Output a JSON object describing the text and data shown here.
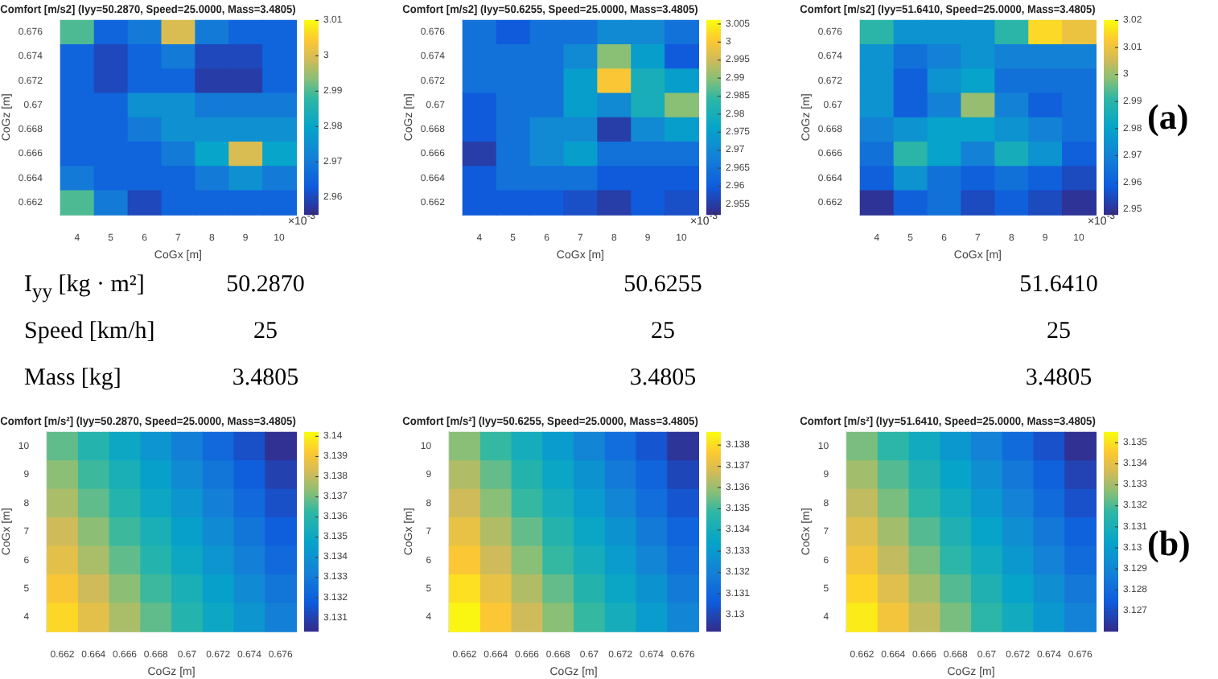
{
  "chart_data": [
    {
      "type": "heatmap",
      "title": "Comfort [m/s2] (Iyy=50.2870, Speed=25.0000, Mass=3.4805)",
      "xlabel": "CoGx [m]",
      "ylabel": "CoGz [m]",
      "annotations": [
        "×10$^{-3}$"
      ],
      "categories": [
        "4",
        "5",
        "6",
        "7",
        "8",
        "9",
        "10"
      ],
      "y_categories": [
        "0.676",
        "0.674",
        "0.672",
        "0.67",
        "0.668",
        "0.666",
        "0.664",
        "0.662"
      ],
      "cells": [
        [
          2.99,
          2.965,
          2.97,
          3.0,
          2.97,
          2.965,
          2.965
        ],
        [
          2.965,
          2.96,
          2.965,
          2.97,
          2.96,
          2.96,
          2.965
        ],
        [
          2.965,
          2.96,
          2.965,
          2.965,
          2.958,
          2.958,
          2.965
        ],
        [
          2.965,
          2.965,
          2.975,
          2.975,
          2.97,
          2.97,
          2.97
        ],
        [
          2.965,
          2.965,
          2.97,
          2.975,
          2.975,
          2.975,
          2.975
        ],
        [
          2.965,
          2.965,
          2.965,
          2.97,
          2.98,
          3.0,
          2.98
        ],
        [
          2.97,
          2.965,
          2.965,
          2.965,
          2.97,
          2.975,
          2.97
        ],
        [
          2.99,
          2.97,
          2.96,
          2.965,
          2.965,
          2.965,
          2.965
        ]
      ],
      "clim": [
        2.955,
        3.01
      ],
      "cticks": [
        2.96,
        2.97,
        2.98,
        2.99,
        3,
        3.01
      ]
    },
    {
      "type": "heatmap",
      "title": "Comfort [m/s2] (Iyy=50.6255, Speed=25.0000, Mass=3.4805)",
      "xlabel": "CoGx [m]",
      "ylabel": "CoGz [m]",
      "annotations": [
        "×10$^{-3}$"
      ],
      "categories": [
        "4",
        "5",
        "6",
        "7",
        "8",
        "9",
        "10"
      ],
      "y_categories": [
        "0.676",
        "0.674",
        "0.672",
        "0.67",
        "0.668",
        "0.666",
        "0.664",
        "0.662"
      ],
      "cells": [
        [
          2.965,
          2.96,
          2.965,
          2.965,
          2.97,
          2.97,
          2.965
        ],
        [
          2.965,
          2.965,
          2.965,
          2.97,
          2.99,
          2.975,
          2.96
        ],
        [
          2.965,
          2.965,
          2.965,
          2.975,
          3.0,
          2.98,
          2.975
        ],
        [
          2.96,
          2.965,
          2.965,
          2.975,
          2.97,
          2.98,
          2.99
        ],
        [
          2.96,
          2.965,
          2.97,
          2.97,
          2.955,
          2.97,
          2.975
        ],
        [
          2.955,
          2.965,
          2.97,
          2.975,
          2.965,
          2.965,
          2.965
        ],
        [
          2.96,
          2.965,
          2.965,
          2.965,
          2.96,
          2.96,
          2.96
        ],
        [
          2.96,
          2.96,
          2.96,
          2.958,
          2.955,
          2.96,
          2.958
        ]
      ],
      "clim": [
        2.952,
        3.006
      ],
      "cticks": [
        2.955,
        2.96,
        2.965,
        2.97,
        2.975,
        2.98,
        2.985,
        2.99,
        2.995,
        3,
        3.005
      ]
    },
    {
      "type": "heatmap",
      "title": "Comfort [m/s2] (Iyy=51.6410, Speed=25.0000, Mass=3.4805)",
      "xlabel": "CoGx [m]",
      "ylabel": "CoGz [m]",
      "annotations": [
        "×10$^{-3}$"
      ],
      "categories": [
        "4",
        "5",
        "6",
        "7",
        "8",
        "9",
        "10"
      ],
      "y_categories": [
        "0.676",
        "0.674",
        "0.672",
        "0.67",
        "0.668",
        "0.666",
        "0.664",
        "0.662"
      ],
      "cells": [
        [
          2.99,
          2.975,
          2.975,
          2.975,
          2.99,
          3.015,
          3.01
        ],
        [
          2.975,
          2.965,
          2.97,
          2.975,
          2.97,
          2.97,
          2.97
        ],
        [
          2.975,
          2.96,
          2.975,
          2.98,
          2.965,
          2.965,
          2.965
        ],
        [
          2.975,
          2.96,
          2.97,
          3.0,
          2.97,
          2.96,
          2.965
        ],
        [
          2.97,
          2.975,
          2.98,
          2.98,
          2.975,
          2.97,
          2.965
        ],
        [
          2.965,
          2.99,
          2.98,
          2.97,
          2.985,
          2.975,
          2.96
        ],
        [
          2.96,
          2.975,
          2.965,
          2.96,
          2.965,
          2.96,
          2.955
        ],
        [
          2.95,
          2.96,
          2.965,
          2.955,
          2.96,
          2.955,
          2.95
        ]
      ],
      "clim": [
        2.948,
        3.02
      ],
      "cticks": [
        2.95,
        2.96,
        2.97,
        2.98,
        2.99,
        3,
        3.01,
        3.02
      ]
    },
    {
      "type": "other",
      "annotations": [
        "(a)"
      ]
    },
    {
      "type": "other",
      "annotations": [
        "I$_{yy}$ [kg · m²]",
        "50.2870",
        "50.6255",
        "51.6410",
        "Speed [km/h]",
        "25",
        "25",
        "25",
        "Mass [kg]",
        "3.4805",
        "3.4805",
        "3.4805"
      ]
    },
    {
      "type": "heatmap",
      "title": "Comfort [m/s²] (Iyy=50.2870, Speed=25.0000, Mass=3.4805)",
      "xlabel": "CoGz [m]",
      "ylabel": "CoGx [m]",
      "categories": [
        "0.662",
        "0.664",
        "0.666",
        "0.668",
        "0.67",
        "0.672",
        "0.674",
        "0.676"
      ],
      "y_categories": [
        "10",
        "9",
        "8",
        "7",
        "6",
        "5",
        "4"
      ],
      "cells": [
        [
          3.1368,
          3.1359,
          3.135,
          3.1341,
          3.1332,
          3.1323,
          3.1314,
          3.1305
        ],
        [
          3.1373,
          3.1364,
          3.1355,
          3.1346,
          3.1337,
          3.1328,
          3.1319,
          3.131
        ],
        [
          3.1377,
          3.1368,
          3.1359,
          3.135,
          3.1341,
          3.1332,
          3.1323,
          3.1314
        ],
        [
          3.1382,
          3.1373,
          3.1364,
          3.1355,
          3.1346,
          3.1337,
          3.1328,
          3.1319
        ],
        [
          3.1386,
          3.1377,
          3.1368,
          3.1359,
          3.135,
          3.1341,
          3.1332,
          3.1323
        ],
        [
          3.1391,
          3.1382,
          3.1373,
          3.1364,
          3.1355,
          3.1346,
          3.1337,
          3.1328
        ],
        [
          3.1395,
          3.1386,
          3.1377,
          3.1368,
          3.1359,
          3.135,
          3.1341,
          3.1332
        ]
      ],
      "clim": [
        3.1303,
        3.1402
      ],
      "cticks": [
        3.131,
        3.132,
        3.133,
        3.134,
        3.135,
        3.136,
        3.137,
        3.138,
        3.139,
        3.14
      ]
    },
    {
      "type": "heatmap",
      "title": "Comfort [m/s²] (Iyy=50.6255, Speed=25.0000, Mass=3.4805)",
      "xlabel": "CoGz [m]",
      "ylabel": "CoGx [m]",
      "categories": [
        "0.662",
        "0.664",
        "0.666",
        "0.668",
        "0.67",
        "0.672",
        "0.674",
        "0.676"
      ],
      "y_categories": [
        "10",
        "9",
        "8",
        "7",
        "6",
        "5",
        "4"
      ],
      "cells": [
        [
          3.1358,
          3.1349,
          3.134,
          3.1331,
          3.1322,
          3.1313,
          3.1304,
          3.1295
        ],
        [
          3.1363,
          3.1354,
          3.1345,
          3.1336,
          3.1327,
          3.1318,
          3.1309,
          3.13
        ],
        [
          3.1367,
          3.1358,
          3.1349,
          3.134,
          3.1331,
          3.1322,
          3.1313,
          3.1304
        ],
        [
          3.1372,
          3.1363,
          3.1354,
          3.1345,
          3.1336,
          3.1327,
          3.1318,
          3.1309
        ],
        [
          3.1376,
          3.1367,
          3.1358,
          3.1349,
          3.134,
          3.1331,
          3.1322,
          3.1313
        ],
        [
          3.1381,
          3.1372,
          3.1363,
          3.1354,
          3.1345,
          3.1336,
          3.1327,
          3.1318
        ],
        [
          3.1385,
          3.1376,
          3.1367,
          3.1358,
          3.1349,
          3.134,
          3.1331,
          3.1322
        ]
      ],
      "clim": [
        3.1292,
        3.1386
      ],
      "cticks": [
        3.13,
        3.131,
        3.132,
        3.133,
        3.134,
        3.135,
        3.136,
        3.137,
        3.138
      ]
    },
    {
      "type": "heatmap",
      "title": "Comfort [m/s²] (Iyy=51.6410, Speed=25.0000, Mass=3.4805)",
      "xlabel": "CoGz [m]",
      "ylabel": "CoGx [m]",
      "categories": [
        "0.662",
        "0.664",
        "0.666",
        "0.668",
        "0.67",
        "0.672",
        "0.674",
        "0.676"
      ],
      "y_categories": [
        "10",
        "9",
        "8",
        "7",
        "6",
        "5",
        "4"
      ],
      "cells": [
        [
          3.1325,
          3.1316,
          3.1307,
          3.1298,
          3.1289,
          3.128,
          3.1271,
          3.1262
        ],
        [
          3.133,
          3.1321,
          3.1312,
          3.1303,
          3.1294,
          3.1285,
          3.1276,
          3.1267
        ],
        [
          3.1334,
          3.1325,
          3.1316,
          3.1307,
          3.1298,
          3.1289,
          3.128,
          3.1271
        ],
        [
          3.1339,
          3.133,
          3.1321,
          3.1312,
          3.1303,
          3.1294,
          3.1285,
          3.1276
        ],
        [
          3.1343,
          3.1334,
          3.1325,
          3.1316,
          3.1307,
          3.1298,
          3.1289,
          3.128
        ],
        [
          3.1348,
          3.1339,
          3.133,
          3.1321,
          3.1312,
          3.1303,
          3.1294,
          3.1285
        ],
        [
          3.1352,
          3.1343,
          3.1334,
          3.1325,
          3.1316,
          3.1307,
          3.1298,
          3.1289
        ]
      ],
      "clim": [
        3.126,
        3.1355
      ],
      "cticks": [
        3.127,
        3.128,
        3.129,
        3.13,
        3.131,
        3.132,
        3.133,
        3.134,
        3.135
      ]
    },
    {
      "type": "other",
      "annotations": [
        "(b)"
      ]
    }
  ]
}
